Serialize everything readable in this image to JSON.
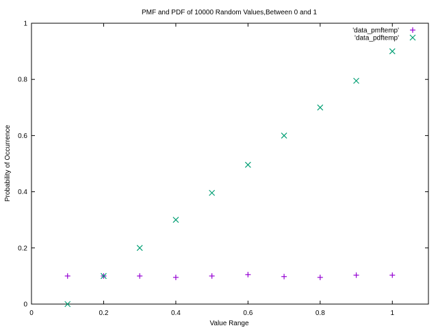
{
  "chart_data": {
    "type": "scatter",
    "title": "PMF and PDF of 10000 Random Values,Between 0 and 1",
    "xlabel": "Value Range",
    "ylabel": "Probability of Occurrence",
    "xlim": [
      0,
      1.1
    ],
    "ylim": [
      0,
      1
    ],
    "xticks": [
      0,
      0.2,
      0.4,
      0.6,
      0.8,
      1
    ],
    "xtick_labels": [
      "0",
      "0.2",
      "0.4",
      "0.6",
      "0.8",
      "1"
    ],
    "yticks": [
      0,
      0.2,
      0.4,
      0.6,
      0.8,
      1
    ],
    "ytick_labels": [
      "0",
      "0.2",
      "0.4",
      "0.6",
      "0.8",
      "1"
    ],
    "grid": false,
    "legend_position": "top-right",
    "series": [
      {
        "name": "'data_pmftemp'",
        "marker": "plus",
        "color": "#9400d3",
        "x": [
          0.1,
          0.2,
          0.3,
          0.4,
          0.5,
          0.6,
          0.7,
          0.8,
          0.9,
          1.0
        ],
        "y": [
          0.1,
          0.1,
          0.1,
          0.095,
          0.1,
          0.105,
          0.098,
          0.095,
          0.103,
          0.103
        ]
      },
      {
        "name": "'data_pdftemp'",
        "marker": "cross",
        "color": "#009e73",
        "x": [
          0.1,
          0.2,
          0.3,
          0.4,
          0.5,
          0.6,
          0.7,
          0.8,
          0.9,
          1.0
        ],
        "y": [
          0.0,
          0.1,
          0.2,
          0.3,
          0.396,
          0.496,
          0.6,
          0.7,
          0.795,
          0.9
        ]
      }
    ]
  }
}
